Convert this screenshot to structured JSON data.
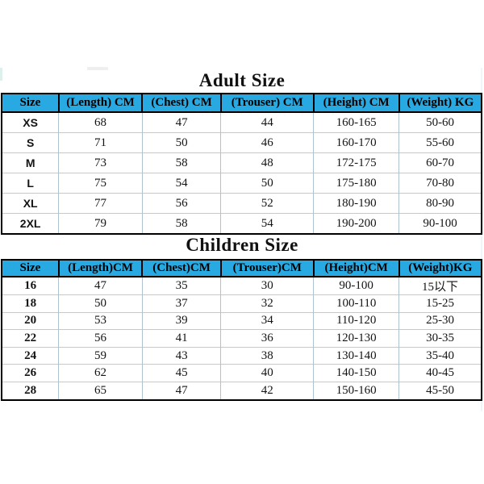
{
  "colors": {
    "header_bg": "#29a9e1",
    "table_border": "#000000",
    "grid_vertical": "#aec3cf",
    "grid_horizontal": "#c8c8c8",
    "text": "#141414"
  },
  "adult_table": {
    "title": "Adult Size",
    "headers": [
      "Size",
      "(Length) CM",
      "(Chest) CM",
      "(Trouser) CM",
      "(Height) CM",
      "(Weight) KG"
    ],
    "rows": [
      [
        "XS",
        "68",
        "47",
        "44",
        "160-165",
        "50-60"
      ],
      [
        "S",
        "71",
        "50",
        "46",
        "160-170",
        "55-60"
      ],
      [
        "M",
        "73",
        "58",
        "48",
        "172-175",
        "60-70"
      ],
      [
        "L",
        "75",
        "54",
        "50",
        "175-180",
        "70-80"
      ],
      [
        "XL",
        "77",
        "56",
        "52",
        "180-190",
        "80-90"
      ],
      [
        "2XL",
        "79",
        "58",
        "54",
        "190-200",
        "90-100"
      ]
    ]
  },
  "children_table": {
    "title": "Children Size",
    "headers": [
      "Size",
      "(Length)CM",
      "(Chest)CM",
      "(Trouser)CM",
      "(Height)CM",
      "(Weight)KG"
    ],
    "rows": [
      [
        "16",
        "47",
        "35",
        "30",
        "90-100",
        "15以下"
      ],
      [
        "18",
        "50",
        "37",
        "32",
        "100-110",
        "15-25"
      ],
      [
        "20",
        "53",
        "39",
        "34",
        "110-120",
        "25-30"
      ],
      [
        "22",
        "56",
        "41",
        "36",
        "120-130",
        "30-35"
      ],
      [
        "24",
        "59",
        "43",
        "38",
        "130-140",
        "35-40"
      ],
      [
        "26",
        "62",
        "45",
        "40",
        "140-150",
        "40-45"
      ],
      [
        "28",
        "65",
        "47",
        "42",
        "150-160",
        "45-50"
      ]
    ]
  }
}
